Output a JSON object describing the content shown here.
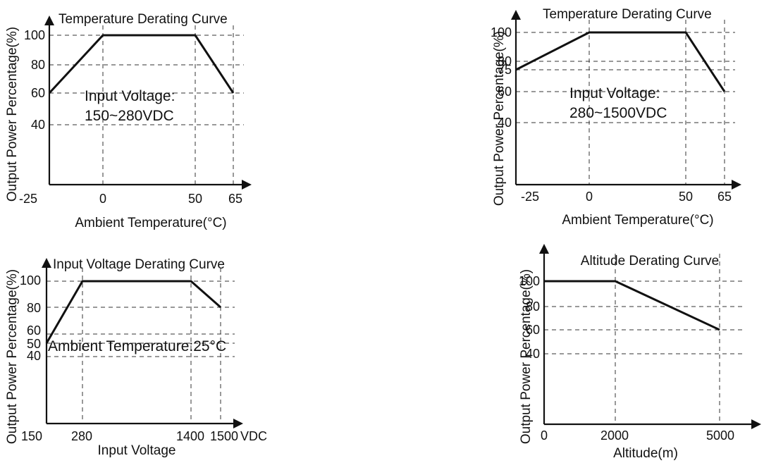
{
  "chart_data": [
    {
      "type": "line",
      "title": "Temperature Derating Curve",
      "xlabel": "Ambient Temperature(°C)",
      "ylabel": "Output Power Percentage(%)",
      "x_ticks": [
        "-25",
        "0",
        "50",
        "65"
      ],
      "y_ticks": [
        "40",
        "60",
        "80",
        "100"
      ],
      "annotation": [
        "Input Voltage:",
        "150~280VDC"
      ],
      "grid": "dashed",
      "series": [
        {
          "x": [
            -25,
            0,
            50,
            65
          ],
          "y": [
            60,
            100,
            100,
            60
          ]
        }
      ]
    },
    {
      "type": "line",
      "title": "Temperature Derating Curve",
      "xlabel": "Ambient Temperature(°C)",
      "ylabel": "Output Power Percentage(%)",
      "x_ticks": [
        "-25",
        "0",
        "50",
        "65"
      ],
      "y_ticks": [
        "40",
        "60",
        "75",
        "80",
        "100"
      ],
      "annotation": [
        "Input Voltage:",
        "280~1500VDC"
      ],
      "grid": "dashed",
      "series": [
        {
          "x": [
            -25,
            0,
            50,
            65
          ],
          "y": [
            75,
            100,
            100,
            60
          ]
        }
      ]
    },
    {
      "type": "line",
      "title": "Input Voltage Derating Curve",
      "xlabel": "Input Voltage",
      "x_unit": "VDC",
      "ylabel": "Output Power Percentage(%)",
      "x_ticks": [
        "150",
        "280",
        "1400",
        "1500"
      ],
      "y_ticks": [
        "40",
        "50",
        "60",
        "80",
        "100"
      ],
      "annotation": [
        "Ambient Temperature:25°C"
      ],
      "grid": "dashed",
      "series": [
        {
          "x": [
            150,
            280,
            1400,
            1500
          ],
          "y": [
            50,
            100,
            100,
            80
          ]
        }
      ]
    },
    {
      "type": "line",
      "title": "Altitude Derating Curve",
      "xlabel": "Altitude(m)",
      "ylabel": "Output Power Percentage(%)",
      "x_ticks": [
        "0",
        "2000",
        "5000"
      ],
      "y_ticks": [
        "40",
        "60",
        "80",
        "100"
      ],
      "annotation": [],
      "grid": "dashed",
      "series": [
        {
          "x": [
            0,
            2000,
            5000
          ],
          "y": [
            100,
            100,
            60
          ]
        }
      ]
    }
  ]
}
